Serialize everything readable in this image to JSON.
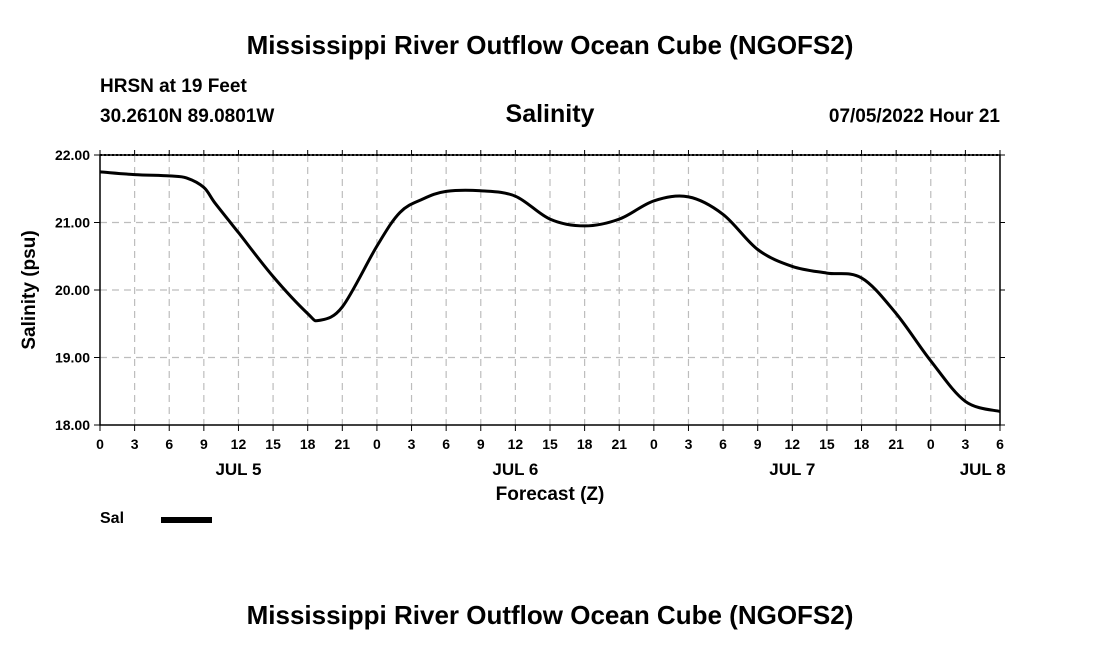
{
  "header": {
    "title": "Mississippi River Outflow Ocean Cube (NGOFS2)",
    "station": "HRSN at 19 Feet",
    "coordinates": "30.2610N  89.0801W",
    "timestamp": "07/05/2022 Hour 21"
  },
  "footer": {
    "title": "Mississippi River Outflow Ocean Cube (NGOFS2)"
  },
  "legend": {
    "label": "Sal"
  },
  "chart_data": {
    "type": "line",
    "title": "Salinity",
    "xlabel": "Forecast (Z)",
    "ylabel": "Salinity (psu)",
    "xlim": [
      0,
      78
    ],
    "ylim": [
      18.0,
      22.0
    ],
    "grid": true,
    "x_tick_hours": [
      0,
      3,
      6,
      9,
      12,
      15,
      18,
      21,
      24,
      27,
      30,
      33,
      36,
      39,
      42,
      45,
      48,
      51,
      54,
      57,
      60,
      63,
      66,
      69,
      72,
      75,
      78
    ],
    "x_tick_labels": [
      "0",
      "3",
      "6",
      "9",
      "12",
      "15",
      "18",
      "21",
      "0",
      "3",
      "6",
      "9",
      "12",
      "15",
      "18",
      "21",
      "0",
      "3",
      "6",
      "9",
      "12",
      "15",
      "18",
      "21",
      "0",
      "3",
      "6"
    ],
    "y_ticks": [
      18.0,
      19.0,
      20.0,
      21.0,
      22.0
    ],
    "y_tick_labels": [
      "18.00",
      "19.00",
      "20.00",
      "21.00",
      "22.00"
    ],
    "date_labels": [
      {
        "hour": 12,
        "label": "JUL 5"
      },
      {
        "hour": 36,
        "label": "JUL 6"
      },
      {
        "hour": 60,
        "label": "JUL 7"
      },
      {
        "hour": 76.5,
        "label": "JUL 8"
      }
    ],
    "series": [
      {
        "name": "Sal",
        "x": [
          0,
          3,
          6,
          7.5,
          9,
          10,
          12,
          15,
          18,
          19,
          21,
          24,
          26,
          28,
          30,
          33,
          36,
          39,
          42,
          45,
          48,
          51,
          54,
          57,
          60,
          63,
          66,
          69,
          72,
          75,
          78
        ],
        "values": [
          21.75,
          21.71,
          21.69,
          21.66,
          21.52,
          21.28,
          20.85,
          20.2,
          19.65,
          19.55,
          19.75,
          20.65,
          21.15,
          21.35,
          21.46,
          21.47,
          21.39,
          21.05,
          20.95,
          21.05,
          21.32,
          21.38,
          21.12,
          20.6,
          20.35,
          20.25,
          20.18,
          19.65,
          18.95,
          18.35,
          18.2
        ]
      }
    ]
  }
}
